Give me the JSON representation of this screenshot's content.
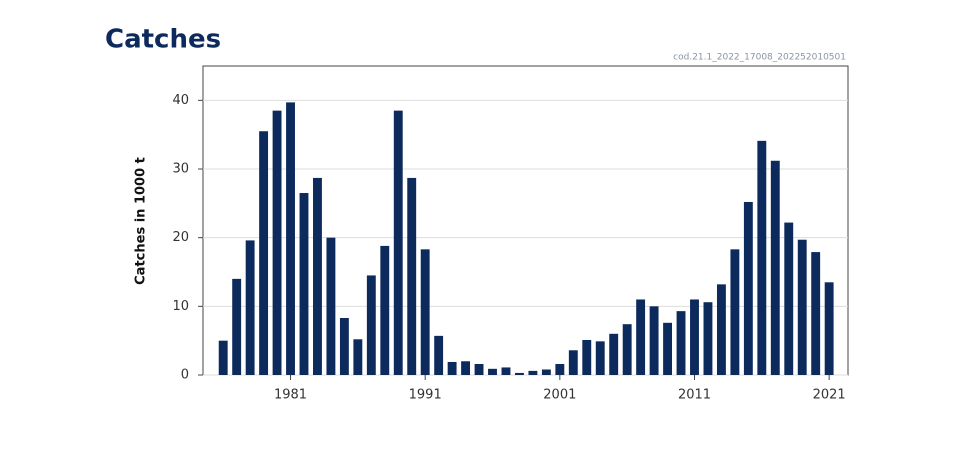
{
  "chart_data": {
    "type": "bar",
    "title": "Catches",
    "source": "cod.21.1_2022_17008_202252010501",
    "ylabel": "Catches in 1000 t",
    "color": "#0d2a5c",
    "grid": true,
    "x": [
      1976,
      1977,
      1978,
      1979,
      1980,
      1981,
      1982,
      1983,
      1984,
      1985,
      1986,
      1987,
      1988,
      1989,
      1990,
      1991,
      1992,
      1993,
      1994,
      1995,
      1996,
      1997,
      1998,
      1999,
      2000,
      2001,
      2002,
      2003,
      2004,
      2005,
      2006,
      2007,
      2008,
      2009,
      2010,
      2011,
      2012,
      2013,
      2014,
      2015,
      2016,
      2017,
      2018,
      2019,
      2020,
      2021
    ],
    "values": [
      5,
      14,
      19.6,
      35.5,
      38.5,
      39.7,
      26.5,
      28.7,
      20,
      8.3,
      5.2,
      14.5,
      18.8,
      38.5,
      28.7,
      18.3,
      5.7,
      1.9,
      2,
      1.6,
      0.9,
      1.1,
      0.3,
      0.6,
      0.8,
      1.6,
      3.6,
      5.1,
      4.9,
      6,
      7.4,
      11,
      10,
      7.6,
      9.3,
      11,
      10.6,
      13.2,
      18.3,
      25.2,
      34.1,
      31.2,
      22.2,
      19.7,
      17.9,
      13.5
    ],
    "xlim": [
      1974.5,
      2022.4
    ],
    "xticks": [
      1981,
      1991,
      2001,
      2011,
      2021
    ],
    "ylim": [
      0,
      45
    ],
    "yticks": [
      0,
      10,
      20,
      30,
      40
    ]
  }
}
